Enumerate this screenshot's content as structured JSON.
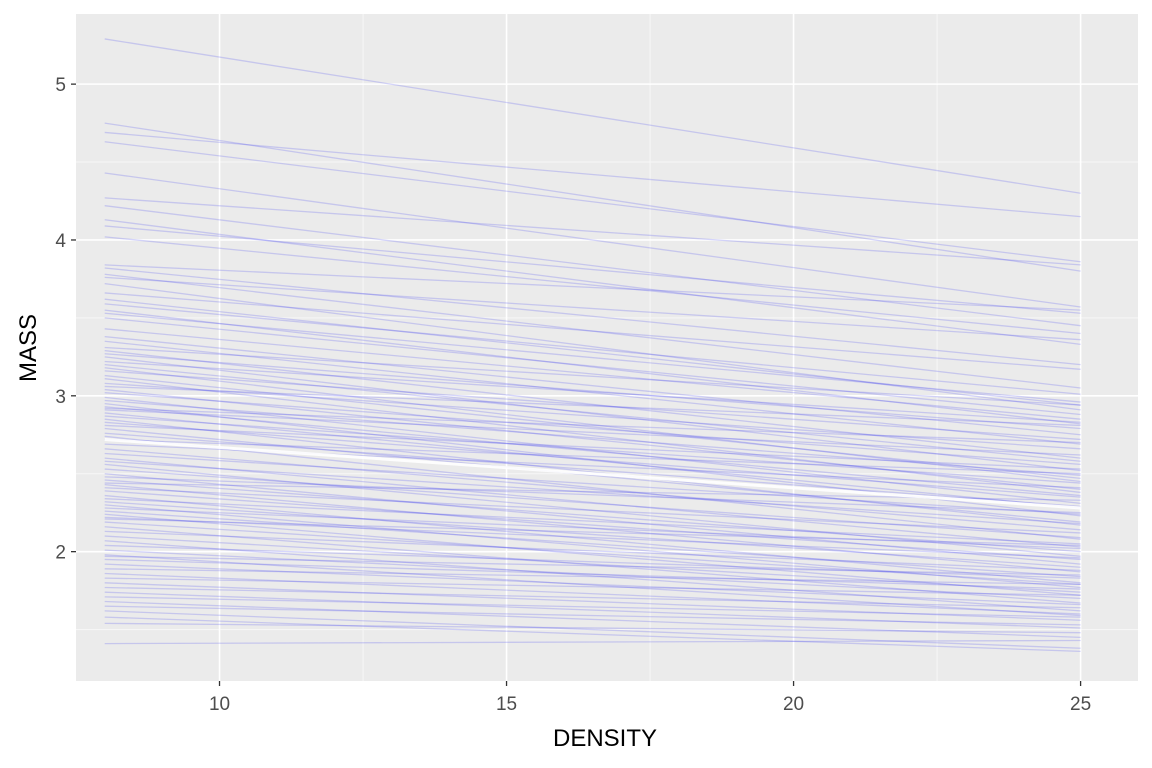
{
  "chart_data": {
    "type": "line",
    "title": "",
    "xlabel": "DENSITY",
    "ylabel": "MASS",
    "xlim": [
      7.5,
      26.0
    ],
    "ylim": [
      1.17,
      5.45
    ],
    "x_ticks": [
      10,
      15,
      20,
      25
    ],
    "y_ticks": [
      2,
      3,
      4,
      5
    ],
    "x_tick_labels": [
      "10",
      "15",
      "20",
      "25"
    ],
    "y_tick_labels": [
      "2",
      "3",
      "4",
      "5"
    ],
    "grid": true,
    "legend": "none",
    "colors": {
      "panel_background": "#ebebeb",
      "grid_major": "#ffffff",
      "grid_minor": "#f7f7f7",
      "line": "#3333ee",
      "highlight": "#ffffff"
    },
    "line_x": [
      8,
      25
    ],
    "lines": [
      [
        5.29,
        4.3
      ],
      [
        4.75,
        3.8
      ],
      [
        4.69,
        4.15
      ],
      [
        4.63,
        3.86
      ],
      [
        4.43,
        3.57
      ],
      [
        4.27,
        3.84
      ],
      [
        4.22,
        3.45
      ],
      [
        4.13,
        3.33
      ],
      [
        4.09,
        3.53
      ],
      [
        4.02,
        3.4
      ],
      [
        3.84,
        3.55
      ],
      [
        3.82,
        3.2
      ],
      [
        3.78,
        3.05
      ],
      [
        3.76,
        3.36
      ],
      [
        3.66,
        3.17
      ],
      [
        3.62,
        2.94
      ],
      [
        3.59,
        3.01
      ],
      [
        3.55,
        2.82
      ],
      [
        3.53,
        2.96
      ],
      [
        3.5,
        2.88
      ],
      [
        3.38,
        2.75
      ],
      [
        3.35,
        2.69
      ],
      [
        3.31,
        2.94
      ],
      [
        3.29,
        2.6
      ],
      [
        3.27,
        2.79
      ],
      [
        3.25,
        2.52
      ],
      [
        3.22,
        2.83
      ],
      [
        3.2,
        2.58
      ],
      [
        3.18,
        2.45
      ],
      [
        3.16,
        2.72
      ],
      [
        3.13,
        2.47
      ],
      [
        3.11,
        2.38
      ],
      [
        3.08,
        2.66
      ],
      [
        3.06,
        2.81
      ],
      [
        3.04,
        2.4
      ],
      [
        3.02,
        2.56
      ],
      [
        2.99,
        2.31
      ],
      [
        2.97,
        2.49
      ],
      [
        2.95,
        2.23
      ],
      [
        2.93,
        2.36
      ],
      [
        2.91,
        2.62
      ],
      [
        2.89,
        2.28
      ],
      [
        2.87,
        2.44
      ],
      [
        2.85,
        2.17
      ],
      [
        2.83,
        2.35
      ],
      [
        2.81,
        2.53
      ],
      [
        2.79,
        2.19
      ],
      [
        2.76,
        2.29
      ],
      [
        2.74,
        2.08
      ],
      [
        2.69,
        2.41
      ],
      [
        2.66,
        2.14
      ],
      [
        2.63,
        2.24
      ],
      [
        2.6,
        2.03
      ],
      [
        2.58,
        2.18
      ],
      [
        2.56,
        1.97
      ],
      [
        2.53,
        2.09
      ],
      [
        2.5,
        1.92
      ],
      [
        2.48,
        2.25
      ],
      [
        2.46,
        2.0
      ],
      [
        2.43,
        1.87
      ],
      [
        2.41,
        2.12
      ],
      [
        2.39,
        1.95
      ],
      [
        2.36,
        1.8
      ],
      [
        2.34,
        2.05
      ],
      [
        2.32,
        1.9
      ],
      [
        2.3,
        1.77
      ],
      [
        2.28,
        2.02
      ],
      [
        2.26,
        1.84
      ],
      [
        2.24,
        1.72
      ],
      [
        2.22,
        1.96
      ],
      [
        2.19,
        1.79
      ],
      [
        2.16,
        1.67
      ],
      [
        2.13,
        1.88
      ],
      [
        2.1,
        1.74
      ],
      [
        2.07,
        1.62
      ],
      [
        2.04,
        1.83
      ],
      [
        2.01,
        1.7
      ],
      [
        1.98,
        1.59
      ],
      [
        1.95,
        1.76
      ],
      [
        1.92,
        1.66
      ],
      [
        1.89,
        1.79
      ],
      [
        1.86,
        1.6
      ],
      [
        1.83,
        1.72
      ],
      [
        1.8,
        1.56
      ],
      [
        1.77,
        1.64
      ],
      [
        1.74,
        1.51
      ],
      [
        1.71,
        1.58
      ],
      [
        1.68,
        1.45
      ],
      [
        1.65,
        1.53
      ],
      [
        1.62,
        1.38
      ],
      [
        1.58,
        1.36
      ],
      [
        1.54,
        1.48
      ],
      [
        1.41,
        1.43
      ],
      [
        3.72,
        2.91
      ],
      [
        3.43,
        2.85
      ],
      [
        2.92,
        2.7
      ],
      [
        2.72,
        2.5
      ],
      [
        2.44,
        2.33
      ],
      [
        2.21,
        2.04
      ],
      [
        1.97,
        1.85
      ]
    ],
    "highlight_line": [
      2.72,
      2.28
    ]
  }
}
